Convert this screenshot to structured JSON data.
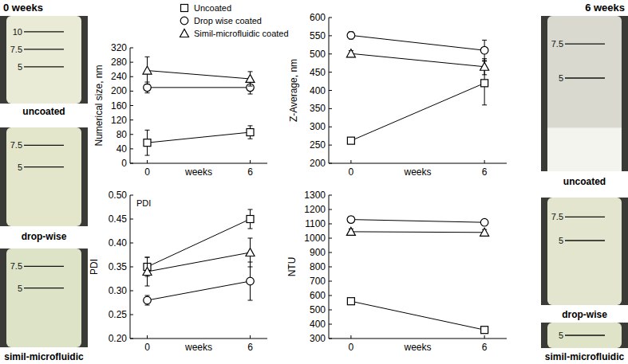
{
  "chart_data": [
    {
      "type": "line",
      "x_label": "weeks",
      "y_label": "Numerical size, nm",
      "x": [
        0,
        6
      ],
      "xlim": [
        -1,
        7
      ],
      "xticks": [
        0,
        6
      ],
      "ylim": [
        0,
        320
      ],
      "yticks": [
        0,
        40,
        80,
        120,
        160,
        200,
        240,
        280,
        320
      ],
      "grid": false,
      "legend": "top",
      "series": [
        {
          "name": "Uncoated",
          "color": "#000000",
          "marker": "square",
          "values": [
            57,
            86
          ],
          "errors": [
            35,
            18
          ]
        },
        {
          "name": "Drop wise coated",
          "color": "#000000",
          "marker": "circle",
          "values": [
            210,
            210
          ],
          "errors": [
            15,
            18
          ]
        },
        {
          "name": "Simil-microfluidic coated",
          "color": "#000000",
          "marker": "triangle",
          "values": [
            257,
            234
          ],
          "errors": [
            38,
            20
          ]
        }
      ]
    },
    {
      "type": "line",
      "x_label": "weeks",
      "y_label": "Z-Average, nm",
      "x": [
        0,
        6
      ],
      "xlim": [
        -1,
        7
      ],
      "xticks": [
        0,
        6
      ],
      "ylim": [
        200,
        600
      ],
      "yticks": [
        200,
        250,
        300,
        350,
        400,
        450,
        500,
        550,
        600
      ],
      "grid": false,
      "series": [
        {
          "color": "#000000",
          "marker": "square",
          "values": [
            262,
            420
          ],
          "errors": [
            8,
            60
          ]
        },
        {
          "color": "#000000",
          "marker": "circle",
          "values": [
            551,
            510
          ],
          "errors": [
            10,
            28
          ]
        },
        {
          "color": "#000000",
          "marker": "triangle",
          "values": [
            501,
            465
          ],
          "errors": [
            8,
            22
          ]
        }
      ]
    },
    {
      "type": "line",
      "x_label": "weeks",
      "y_label": "PDI",
      "annotations": [
        "PDI"
      ],
      "x": [
        0,
        6
      ],
      "xlim": [
        -1,
        7
      ],
      "xticks": [
        0,
        6
      ],
      "ylim": [
        0.2,
        0.5
      ],
      "yticks": [
        {
          "value": 0.2,
          "label": "0.20"
        },
        0.25,
        {
          "value": 0.3,
          "label": "0.30"
        },
        0.35,
        {
          "value": 0.4,
          "label": "0.40"
        },
        0.45,
        {
          "value": 0.5,
          "label": "0.50"
        }
      ],
      "grid": false,
      "series": [
        {
          "color": "#000000",
          "marker": "square",
          "values": [
            0.35,
            0.45
          ],
          "errors": [
            0.02,
            0.02
          ]
        },
        {
          "color": "#000000",
          "marker": "circle",
          "values": [
            0.28,
            0.32
          ],
          "errors": [
            0.01,
            0.04
          ]
        },
        {
          "color": "#000000",
          "marker": "triangle",
          "values": [
            0.34,
            0.38
          ],
          "errors": [
            0.03,
            0.03
          ]
        }
      ]
    },
    {
      "type": "line",
      "x_label": "weeks",
      "y_label": "NTU",
      "x": [
        0,
        6
      ],
      "xlim": [
        -1,
        7
      ],
      "xticks": [
        0,
        6
      ],
      "ylim": [
        300,
        1300
      ],
      "yticks": [
        300,
        400,
        500,
        600,
        700,
        800,
        900,
        1000,
        1100,
        1200,
        1300
      ],
      "grid": false,
      "series": [
        {
          "color": "#000000",
          "marker": "square",
          "values": [
            560,
            360
          ],
          "errors": [
            20,
            20
          ]
        },
        {
          "color": "#000000",
          "marker": "circle",
          "values": [
            1130,
            1110
          ],
          "errors": [
            20,
            20
          ]
        },
        {
          "color": "#000000",
          "marker": "triangle",
          "values": [
            1045,
            1040
          ],
          "errors": [
            20,
            20
          ]
        }
      ]
    }
  ],
  "photos": [
    {
      "title": "0 weeks",
      "images": [
        {
          "caption": "uncoated",
          "marks": [
            "10",
            "7.5",
            "5"
          ]
        },
        {
          "caption": "drop-wise",
          "marks": [
            "7.5",
            "5"
          ]
        },
        {
          "caption": "simil-microfluidic",
          "marks": [
            "7.5",
            "5"
          ]
        }
      ]
    },
    {
      "title": "6 weeks",
      "images": [
        {
          "caption": "uncoated",
          "marks": [
            "7.5",
            "5"
          ]
        },
        {
          "caption": "drop-wise",
          "marks": [
            "7.5",
            "5"
          ]
        },
        {
          "caption": "simil-microfluidic",
          "marks": [
            "5"
          ]
        }
      ]
    }
  ]
}
